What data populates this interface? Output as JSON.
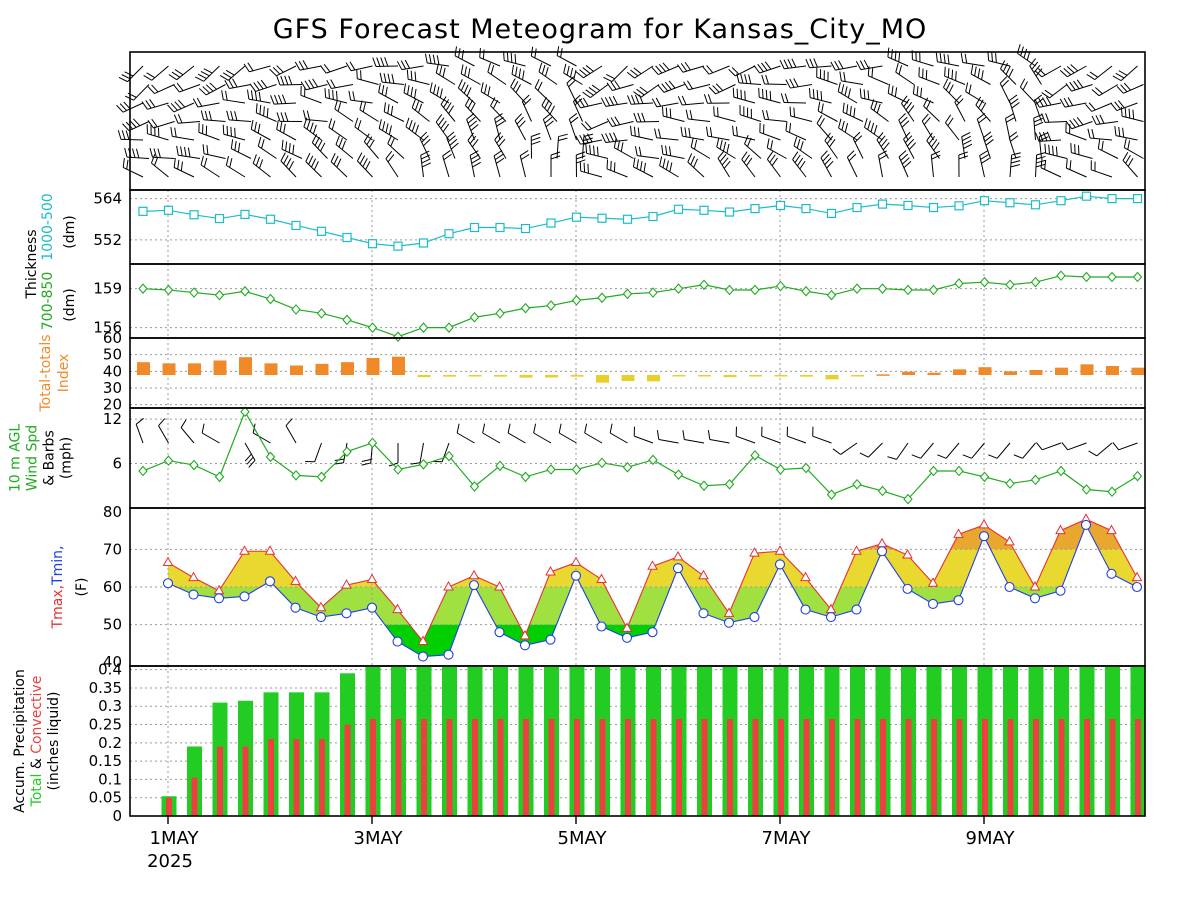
{
  "title": "GFS Forecast Meteogram for Kansas_City_MO",
  "colors": {
    "thickness_1000_500": "#1bbcc8",
    "thickness_700_850": "#22aa22",
    "total_totals_high": "#f08a28",
    "total_totals_low": "#e8d028",
    "wind": "#22aa22",
    "tmax": "#e83030",
    "tmin": "#2040e0",
    "precip_total": "#22cc22",
    "precip_convective": "#ee4040",
    "temp_fill_cold": "#00d000",
    "temp_fill_cool": "#a0e040",
    "temp_fill_mild": "#e8d830",
    "temp_fill_warm": "#e8a830"
  },
  "chart_data": [
    {
      "type": "line",
      "panel": "wind_barbs_upper",
      "title": "",
      "note_visible": "",
      "x": []
    },
    {
      "type": "line",
      "panel": "thickness_1000_500",
      "ylabel_lines": [
        "Thickness",
        "1000-500",
        "(dm)"
      ],
      "yticks": [
        552,
        564
      ],
      "ylim": [
        545,
        566.5
      ],
      "series": [
        {
          "name": "1000-500",
          "values": [
            560.3,
            560.6,
            559.3,
            558.2,
            559.4,
            558.0,
            556.2,
            554.5,
            552.7,
            550.9,
            550.2,
            551.1,
            553.8,
            555.6,
            555.6,
            555.3,
            556.9,
            558.6,
            558.3,
            558.0,
            558.8,
            560.9,
            560.6,
            560.1,
            561.1,
            562.0,
            561.1,
            559.7,
            561.4,
            562.4,
            562.0,
            561.4,
            561.9,
            563.4,
            562.8,
            562.2,
            563.4,
            564.7,
            564.0,
            564.0
          ]
        }
      ]
    },
    {
      "type": "line",
      "panel": "thickness_700_850",
      "ylabel_lines": [
        "700-850",
        "(dm)"
      ],
      "yticks": [
        156,
        159
      ],
      "ylim": [
        155.2,
        160.9
      ],
      "series": [
        {
          "name": "700-850",
          "values": [
            159.0,
            158.9,
            158.7,
            158.5,
            158.8,
            158.2,
            157.4,
            157.1,
            156.6,
            156.0,
            155.3,
            156.0,
            156.0,
            156.8,
            157.1,
            157.5,
            157.7,
            158.1,
            158.3,
            158.6,
            158.7,
            159.0,
            159.3,
            158.9,
            158.9,
            159.2,
            158.8,
            158.5,
            159.0,
            159.0,
            158.9,
            158.9,
            159.4,
            159.5,
            159.3,
            159.5,
            160.0,
            159.9,
            159.9,
            159.9
          ]
        }
      ]
    },
    {
      "type": "bar",
      "panel": "total_totals",
      "ylabel_lines": [
        "Total-totals",
        "Index"
      ],
      "yticks": [
        20,
        30,
        40,
        50,
        60
      ],
      "ylim": [
        18,
        60
      ],
      "baseline": 37.8,
      "series": [
        {
          "name": "Total-totals",
          "values": [
            45.5,
            44.8,
            44.8,
            46.5,
            48.5,
            44.8,
            43.5,
            44.5,
            45.5,
            48.0,
            48.8,
            36.5,
            36.8,
            37.2,
            36.8,
            36.2,
            36.3,
            36.8,
            33.2,
            34.2,
            34.0,
            37.0,
            37.0,
            36.5,
            37.0,
            37.0,
            36.8,
            35.2,
            37.2,
            38.2,
            39.8,
            39.2,
            41.2,
            42.5,
            40.0,
            40.8,
            42.2,
            44.2,
            43.2,
            42.2
          ]
        }
      ]
    },
    {
      "type": "line",
      "panel": "wind_10m",
      "ylabel_lines": [
        "10 m AGL",
        "Wind Spd",
        "& Barbs",
        "(mph)"
      ],
      "yticks": [
        6,
        12
      ],
      "ylim": [
        0,
        13.5
      ],
      "series": [
        {
          "name": "Wind Spd",
          "values": [
            5.0,
            6.4,
            5.8,
            4.2,
            13.0,
            6.9,
            4.4,
            4.2,
            7.6,
            8.8,
            5.2,
            5.9,
            7.0,
            2.9,
            5.7,
            4.2,
            5.2,
            5.2,
            6.1,
            5.5,
            6.5,
            4.5,
            3.0,
            3.2,
            7.1,
            5.2,
            5.4,
            1.8,
            3.2,
            2.3,
            1.2,
            5.0,
            5.0,
            4.2,
            3.3,
            3.8,
            5.0,
            2.5,
            2.2,
            4.3
          ]
        },
        {
          "name": "Wind Direction",
          "values": [
            340,
            330,
            320,
            300,
            150,
            300,
            330,
            200,
            190,
            185,
            180,
            190,
            200,
            300,
            300,
            300,
            300,
            300,
            300,
            300,
            290,
            280,
            280,
            280,
            290,
            290,
            290,
            290,
            235,
            225,
            215,
            220,
            220,
            220,
            220,
            220,
            250,
            250,
            230,
            250
          ]
        }
      ]
    },
    {
      "type": "area",
      "panel": "temperature",
      "ylabel_lines": [
        "Tmax,Tmin",
        "(F)"
      ],
      "ylabel_parts": {
        "tmax": "Tmax,",
        "tmin": "Tmin,"
      },
      "yticks": [
        40,
        50,
        60,
        70,
        80
      ],
      "ylim": [
        39,
        81
      ],
      "series": [
        {
          "name": "Tmax",
          "values": [
            66.5,
            62.5,
            59.0,
            69.5,
            69.5,
            61.5,
            54.5,
            60.5,
            62.0,
            54.0,
            45.5,
            60.0,
            63.0,
            60.0,
            47.0,
            64.0,
            66.5,
            62.0,
            49.0,
            65.5,
            68.0,
            63.0,
            53.0,
            69.0,
            69.5,
            62.5,
            54.0,
            69.5,
            71.5,
            68.5,
            61.0,
            74.0,
            76.5,
            72.0,
            60.0,
            75.0,
            78.0,
            75.0,
            62.5
          ]
        },
        {
          "name": "Tmin",
          "values": [
            61.0,
            58.0,
            57.0,
            57.5,
            61.5,
            54.5,
            52.0,
            53.0,
            54.5,
            45.5,
            41.5,
            42.0,
            60.5,
            48.0,
            44.5,
            46.0,
            63.0,
            49.5,
            46.5,
            48.0,
            65.0,
            53.0,
            50.5,
            52.0,
            66.0,
            54.0,
            52.0,
            54.0,
            69.5,
            59.5,
            55.5,
            56.5,
            73.5,
            60.0,
            57.0,
            59.0,
            76.5,
            63.5,
            60.0
          ]
        }
      ]
    },
    {
      "type": "bar",
      "panel": "precipitation",
      "ylabel_lines": [
        "Accum. Precipitation",
        "Total & Convective",
        "(inches liquid)"
      ],
      "ylabel_parts": {
        "total": "Total",
        "amp": " & ",
        "convective": "Convective"
      },
      "yticks": [
        0,
        0.05,
        0.1,
        0.15,
        0.2,
        0.25,
        0.3,
        0.35,
        0.4
      ],
      "ytick_labels": [
        "0",
        "0.05",
        "0.1",
        "0.15",
        "0.2",
        "0.25",
        "0.3",
        "0.35",
        "0.4"
      ],
      "ylim": [
        0,
        0.41
      ],
      "series": [
        {
          "name": "Total",
          "values": [
            0,
            0.054,
            0.19,
            0.31,
            0.315,
            0.338,
            0.338,
            0.338,
            0.39,
            0.41,
            0.41,
            0.41,
            0.41,
            0.41,
            0.41,
            0.41,
            0.41,
            0.41,
            0.41,
            0.41,
            0.41,
            0.41,
            0.41,
            0.41,
            0.41,
            0.41,
            0.41,
            0.41,
            0.41,
            0.41,
            0.41,
            0.41,
            0.41,
            0.41,
            0.41,
            0.41,
            0.41,
            0.41,
            0.41,
            0.41
          ]
        },
        {
          "name": "Convective",
          "values": [
            0,
            0.05,
            0.105,
            0.19,
            0.19,
            0.21,
            0.21,
            0.21,
            0.25,
            0.265,
            0.265,
            0.265,
            0.265,
            0.265,
            0.265,
            0.265,
            0.265,
            0.265,
            0.265,
            0.265,
            0.265,
            0.265,
            0.265,
            0.265,
            0.265,
            0.265,
            0.265,
            0.265,
            0.265,
            0.265,
            0.265,
            0.265,
            0.265,
            0.265,
            0.265,
            0.265,
            0.265,
            0.265,
            0.265,
            0.265
          ]
        }
      ],
      "xticks": [
        "1MAY",
        "3MAY",
        "5MAY",
        "7MAY",
        "9MAY"
      ],
      "xyear": "2025"
    }
  ]
}
